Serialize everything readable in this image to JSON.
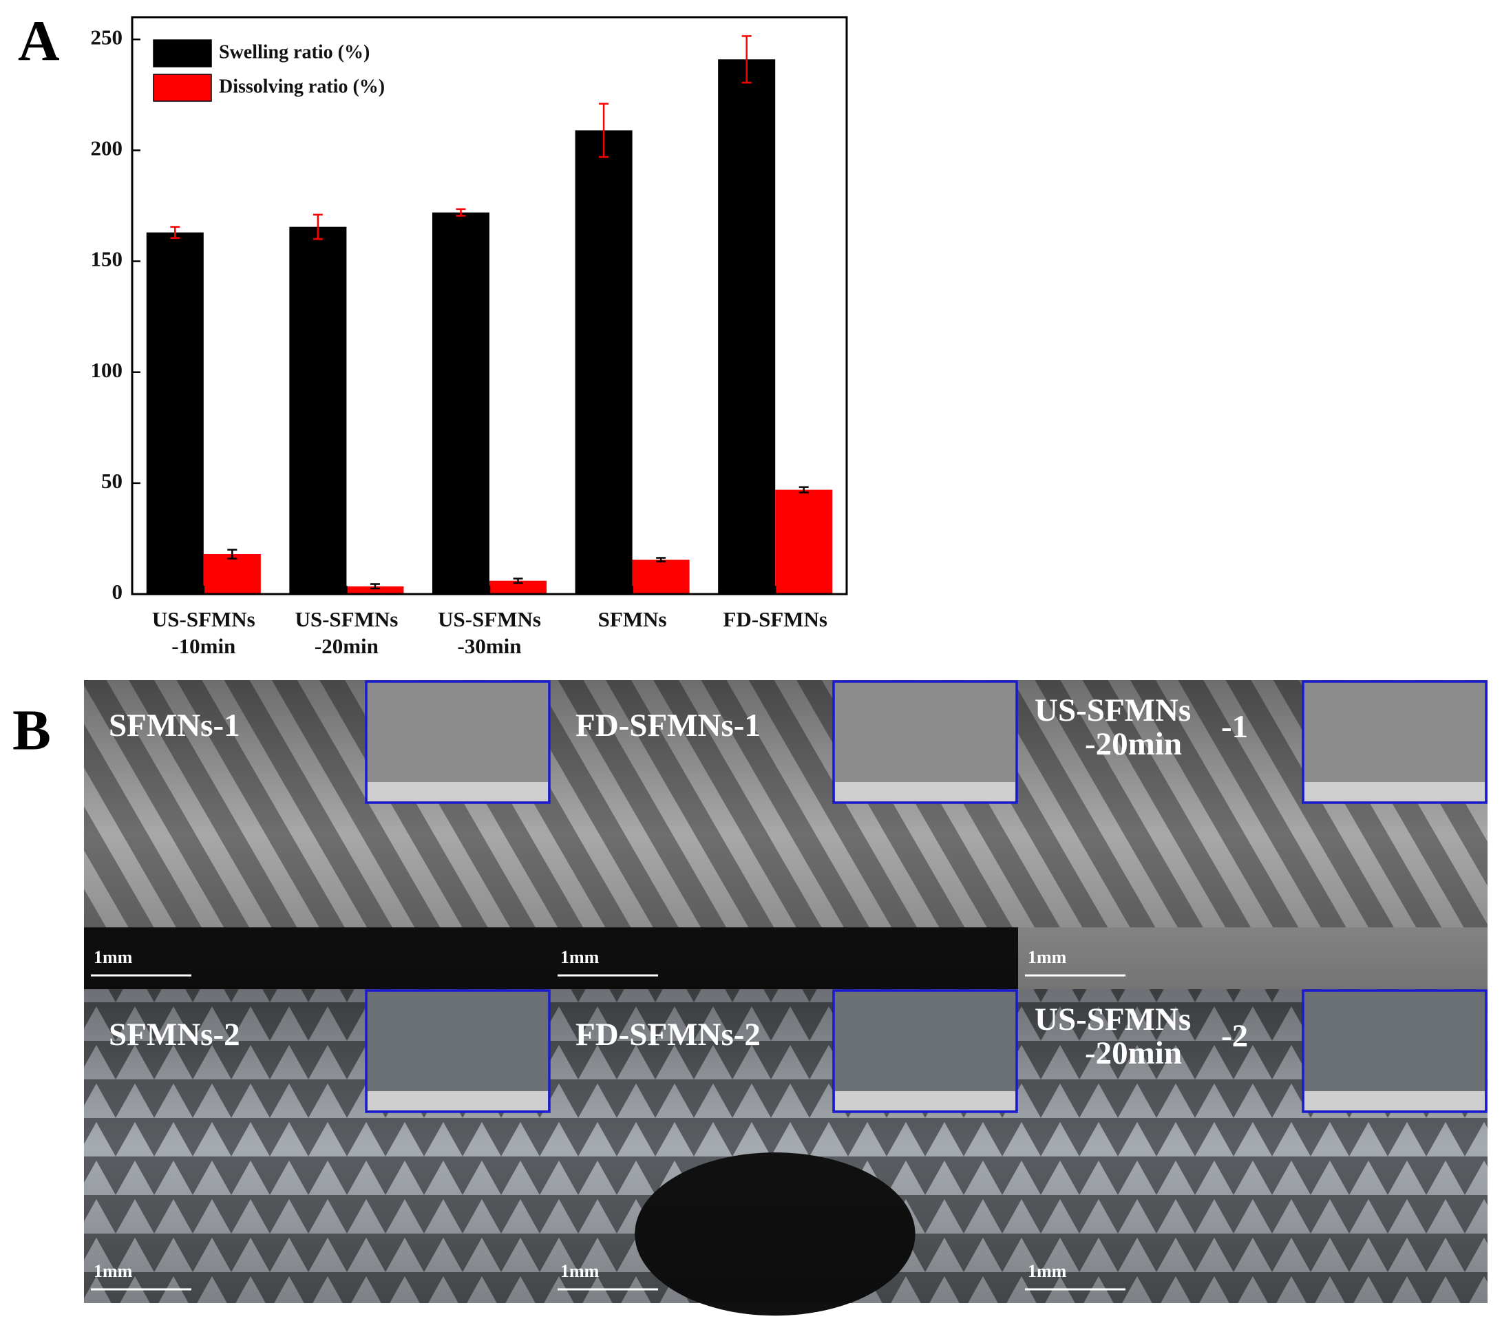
{
  "chart_data": {
    "type": "bar",
    "categories": [
      "US-SFMNs\n-10min",
      "US-SFMNs\n-20min",
      "US-SFMNs\n-30min",
      "SFMNs",
      "FD-SFMNs"
    ],
    "series": [
      {
        "name": "Swelling ratio (%)",
        "color": "#000000",
        "error_color": "#ff0000",
        "values": [
          163,
          165.5,
          172,
          209,
          241
        ],
        "errors": [
          2.5,
          5.5,
          1.5,
          12,
          10.5
        ]
      },
      {
        "name": "Dissolving ratio (%)",
        "color": "#ff0000",
        "error_color": "#000000",
        "values": [
          18,
          3.5,
          6,
          15.5,
          47
        ],
        "errors": [
          2,
          1,
          1,
          0.8,
          1.2
        ]
      }
    ],
    "ylim": [
      0,
      260
    ],
    "yticks": [
      0,
      50,
      100,
      150,
      200,
      250
    ],
    "legend": "upper left",
    "grid": false
  },
  "panel_labels": [
    "A",
    "B"
  ],
  "photos": [
    {
      "label": [
        "SFMNs-1"
      ],
      "scale": "1mm"
    },
    {
      "label": [
        "FD-SFMNs-1"
      ],
      "scale": "1mm"
    },
    {
      "label": [
        "US-SFMNs",
        "-20min",
        "-1"
      ],
      "scale": "1mm"
    },
    {
      "label": [
        "SFMNs-2"
      ],
      "scale": "1mm"
    },
    {
      "label": [
        "FD-SFMNs-2"
      ],
      "scale": "1mm"
    },
    {
      "label": [
        "US-SFMNs",
        "-20min",
        "-2"
      ],
      "scale": "1mm"
    }
  ]
}
